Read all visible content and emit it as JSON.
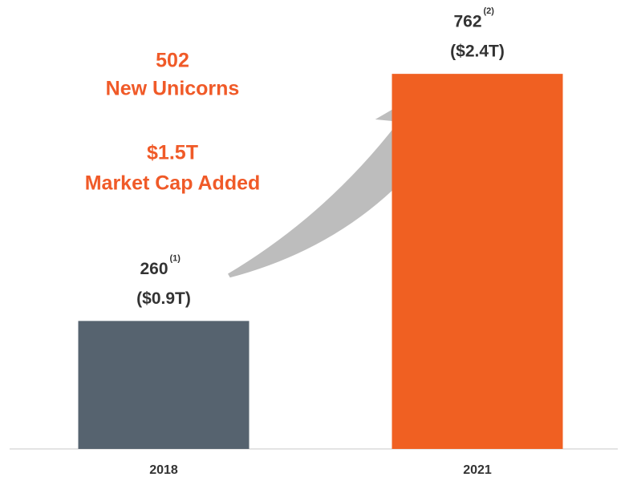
{
  "chart_data": {
    "type": "bar",
    "categories": [
      "2018",
      "2021"
    ],
    "values": [
      260,
      762
    ],
    "colors": [
      "#56636f",
      "#f06022"
    ],
    "footnotes": [
      "(1)",
      "(2)"
    ],
    "market_cap_labels": [
      "($0.9T)",
      "($2.4T)"
    ],
    "annotations": [
      "502",
      "New Unicorns",
      "$1.5T",
      "Market Cap Added"
    ],
    "annotation_color": "#f05a28"
  }
}
